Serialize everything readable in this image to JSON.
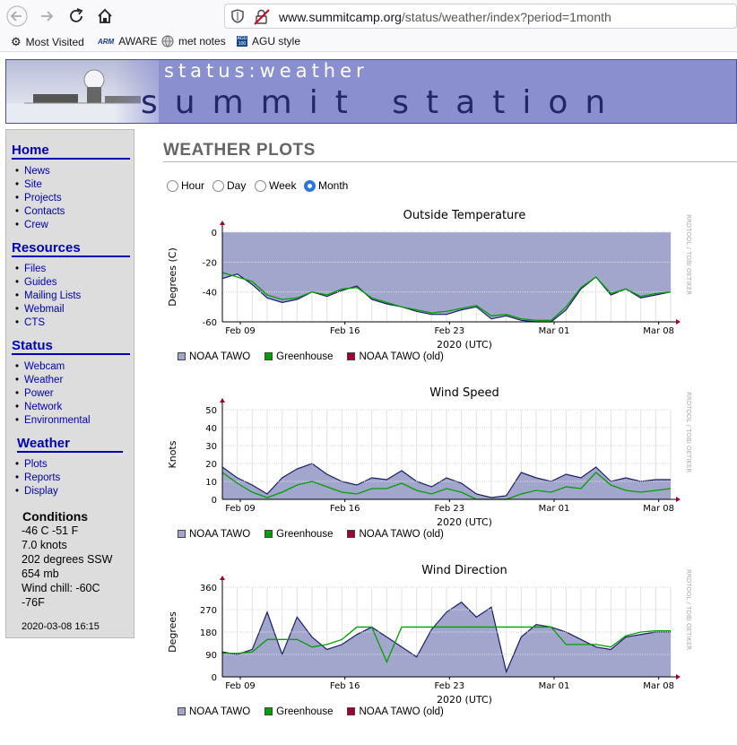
{
  "browser": {
    "url_domain": "www.summitcamp.org",
    "url_path": "/status/weather/index?period=1month",
    "bookmarks": [
      "Most Visited",
      "AWARE",
      "met notes",
      "AGU style"
    ]
  },
  "banner": {
    "subtitle": "status:weather",
    "title": "summit station"
  },
  "sidebar": {
    "sections": [
      {
        "heading": "Home",
        "items": [
          "News",
          "Site",
          "Projects",
          "Contacts",
          "Crew"
        ]
      },
      {
        "heading": "Resources",
        "items": [
          "Files",
          "Guides",
          "Mailing Lists",
          "Webmail",
          "CTS"
        ]
      },
      {
        "heading": "Status",
        "items": [
          "Webcam",
          "Weather",
          "Power",
          "Network",
          "Environmental"
        ]
      },
      {
        "heading": "Weather",
        "items": [
          "Plots",
          "Reports",
          "Display"
        ]
      }
    ],
    "conditions": {
      "heading": "Conditions",
      "lines": [
        "-46 C -51 F",
        "7.0 knots",
        "202 degrees SSW",
        "654 mb",
        "Wind chill: -60C",
        "-76F"
      ],
      "timestamp": "2020-03-08 16:15"
    }
  },
  "main": {
    "title": "WEATHER PLOTS",
    "periods": [
      {
        "label": "Hour",
        "checked": false
      },
      {
        "label": "Day",
        "checked": false
      },
      {
        "label": "Week",
        "checked": false
      },
      {
        "label": "Month",
        "checked": true
      }
    ],
    "legend": [
      "NOAA TAWO",
      "Greenhouse",
      "NOAA TAWO (old)"
    ],
    "legend_colors": [
      "#a3a6cc",
      "#00a000",
      "#a00030"
    ],
    "watermark": "RRDTOOL / TOBI OETIKER"
  },
  "chart_data": [
    {
      "type": "area",
      "title": "Outside Temperature",
      "xlabel": "2020 (UTC)",
      "ylabel": "Degrees (C)",
      "xticks": [
        "Feb 09",
        "Feb 16",
        "Feb 23",
        "Mar 01",
        "Mar 08"
      ],
      "yticks": [
        0,
        -20,
        -40,
        -60
      ],
      "ylim": [
        -60,
        0
      ],
      "x": [
        0,
        1,
        2,
        3,
        4,
        5,
        6,
        7,
        8,
        9,
        10,
        11,
        12,
        13,
        14,
        15,
        16,
        17,
        18,
        19,
        20,
        21,
        22,
        23,
        24,
        25,
        26,
        27,
        28,
        29,
        30
      ],
      "series": [
        {
          "name": "NOAA TAWO",
          "values": [
            -31,
            -28,
            -35,
            -44,
            -47,
            -45,
            -40,
            -43,
            -39,
            -36,
            -45,
            -48,
            -50,
            -53,
            -55,
            -55,
            -52,
            -50,
            -58,
            -56,
            -59,
            -60,
            -60,
            -52,
            -38,
            -30,
            -42,
            -38,
            -44,
            -42,
            -40
          ],
          "fill": "baseline"
        },
        {
          "name": "Greenhouse",
          "values": [
            -27,
            -30,
            -33,
            -42,
            -45,
            -44,
            -40,
            -42,
            -38,
            -37,
            -44,
            -47,
            -50,
            -52,
            -54,
            -53,
            -51,
            -49,
            -56,
            -55,
            -58,
            -59,
            -59,
            -50,
            -37,
            -30,
            -41,
            -38,
            -43,
            -41,
            -40
          ]
        }
      ]
    },
    {
      "type": "area",
      "title": "Wind Speed",
      "xlabel": "2020 (UTC)",
      "ylabel": "Knots",
      "xticks": [
        "Feb 09",
        "Feb 16",
        "Feb 23",
        "Mar 01",
        "Mar 08"
      ],
      "yticks": [
        0,
        10,
        20,
        30,
        40,
        50
      ],
      "ylim": [
        0,
        50
      ],
      "x": [
        0,
        1,
        2,
        3,
        4,
        5,
        6,
        7,
        8,
        9,
        10,
        11,
        12,
        13,
        14,
        15,
        16,
        17,
        18,
        19,
        20,
        21,
        22,
        23,
        24,
        25,
        26,
        27,
        28,
        29,
        30
      ],
      "series": [
        {
          "name": "NOAA TAWO",
          "values": [
            18,
            12,
            8,
            3,
            12,
            17,
            20,
            14,
            10,
            8,
            12,
            11,
            16,
            10,
            7,
            12,
            9,
            3,
            1,
            2,
            15,
            12,
            10,
            14,
            12,
            18,
            10,
            12,
            10,
            11,
            11
          ],
          "fill": "zero"
        },
        {
          "name": "Greenhouse",
          "values": [
            15,
            9,
            4,
            1,
            4,
            8,
            10,
            7,
            4,
            3,
            6,
            6,
            9,
            5,
            3,
            6,
            4,
            0,
            0,
            0,
            3,
            5,
            4,
            7,
            6,
            15,
            8,
            5,
            4,
            5,
            6
          ]
        }
      ]
    },
    {
      "type": "area",
      "title": "Wind Direction",
      "xlabel": "2020 (UTC)",
      "ylabel": "Degrees",
      "xticks": [
        "Feb 09",
        "Feb 16",
        "Feb 23",
        "Mar 01",
        "Mar 08"
      ],
      "yticks": [
        0,
        90,
        180,
        270,
        360
      ],
      "ylim": [
        0,
        360
      ],
      "x": [
        0,
        1,
        2,
        3,
        4,
        5,
        6,
        7,
        8,
        9,
        10,
        11,
        12,
        13,
        14,
        15,
        16,
        17,
        18,
        19,
        20,
        21,
        22,
        23,
        24,
        25,
        26,
        27,
        28,
        29,
        30
      ],
      "series": [
        {
          "name": "NOAA TAWO",
          "values": [
            100,
            90,
            110,
            260,
            90,
            240,
            160,
            110,
            130,
            170,
            200,
            160,
            120,
            80,
            190,
            260,
            300,
            240,
            280,
            20,
            160,
            210,
            200,
            180,
            150,
            120,
            110,
            160,
            170,
            180,
            180
          ],
          "fill": "zero"
        },
        {
          "name": "Greenhouse",
          "values": [
            95,
            95,
            100,
            150,
            150,
            150,
            120,
            130,
            150,
            200,
            200,
            60,
            200,
            200,
            200,
            200,
            200,
            200,
            200,
            200,
            200,
            200,
            200,
            130,
            130,
            130,
            120,
            165,
            180,
            185,
            185
          ]
        }
      ]
    }
  ]
}
